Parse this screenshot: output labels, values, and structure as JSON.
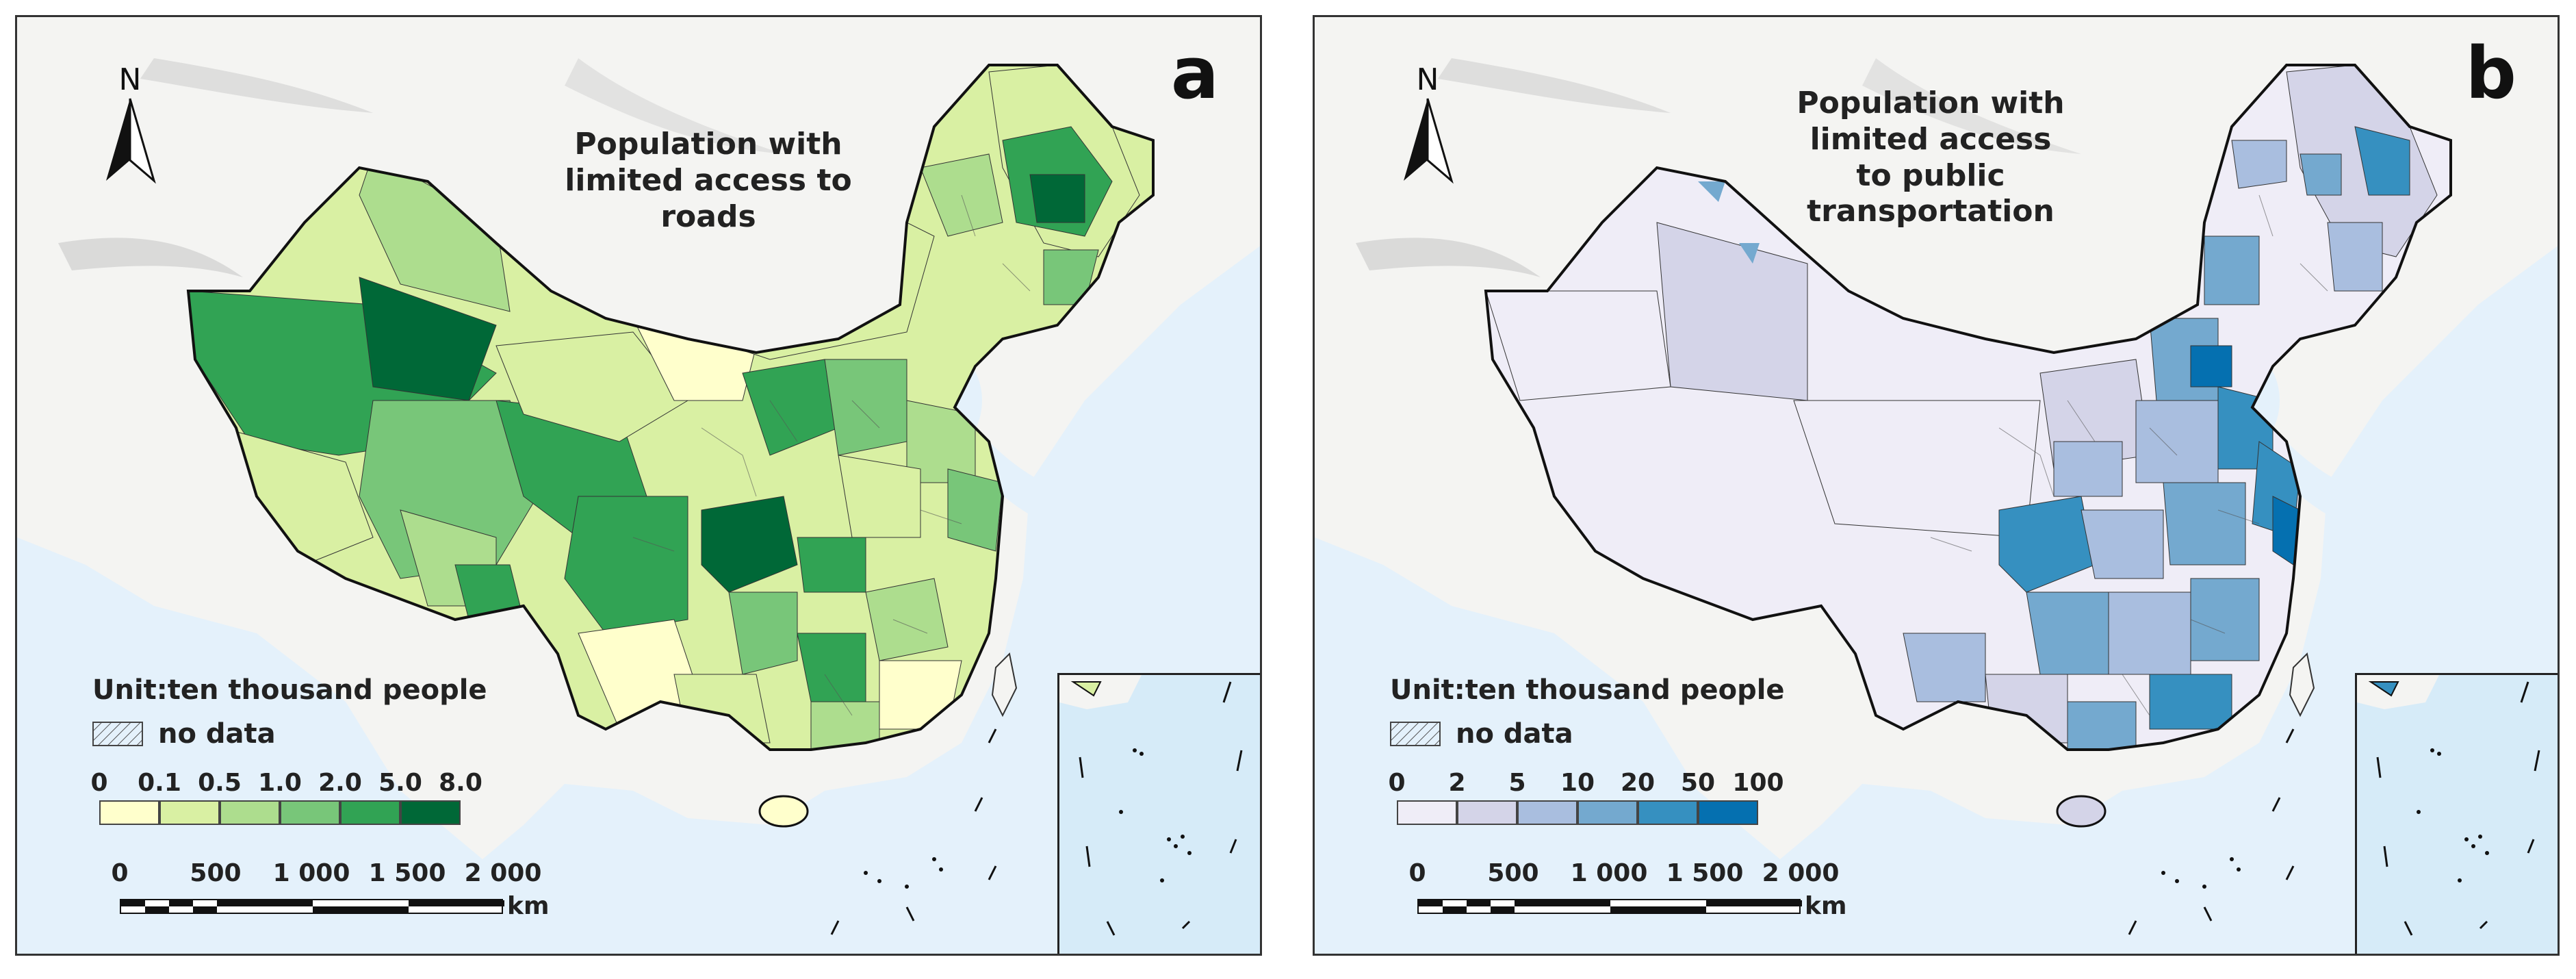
{
  "panels": [
    {
      "letter": "a",
      "title": "Population with\nlimited access to\nroads",
      "north_label": "N",
      "legend": {
        "unit": "Unit:ten thousand people",
        "no_data": "no data",
        "breaks": [
          "0",
          "0.1",
          "0.5",
          "1.0",
          "2.0",
          "5.0",
          "8.0"
        ],
        "colors": [
          "#ffffcc",
          "#d9f0a3",
          "#addd8e",
          "#78c679",
          "#31a354",
          "#006837"
        ]
      },
      "scalebar": {
        "labels": [
          "0",
          "500",
          "1 000",
          "1 500",
          "2 000"
        ],
        "unit": "km"
      }
    },
    {
      "letter": "b",
      "title": "Population with\nlimited access\nto public\ntransportation",
      "north_label": "N",
      "legend": {
        "unit": "Unit:ten thousand people",
        "no_data": "no data",
        "breaks": [
          "0",
          "2",
          "5",
          "10",
          "20",
          "50",
          "100"
        ],
        "colors": [
          "#efedf7",
          "#d4d4e8",
          "#a9bedf",
          "#74a9cf",
          "#3690c0",
          "#0570b0"
        ]
      },
      "scalebar": {
        "labels": [
          "0",
          "500",
          "1 000",
          "1 500",
          "2 000"
        ],
        "unit": "km"
      }
    }
  ],
  "colors": {
    "sea": "#e4f1fb",
    "land_relief": "#f4f4f2",
    "relief_shade": "#c8c8c8",
    "border": "#111111"
  }
}
